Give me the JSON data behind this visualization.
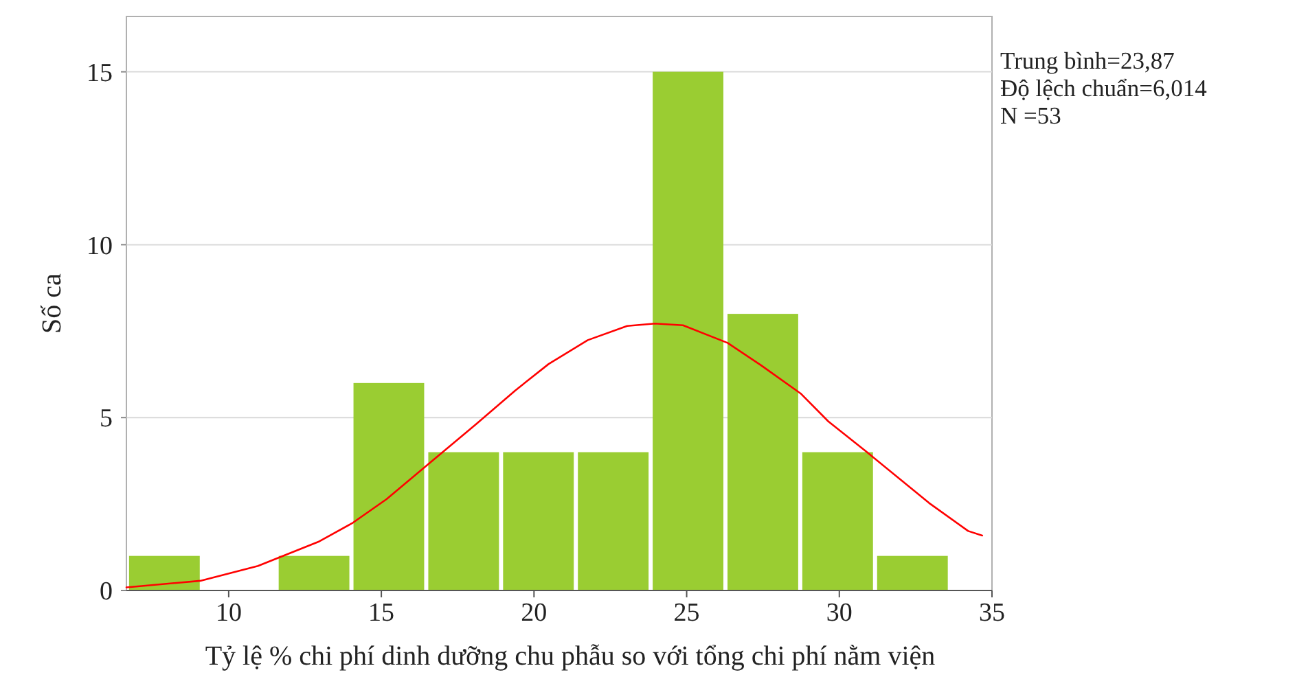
{
  "chart_data": {
    "type": "histogram",
    "xlabel": "Tỷ lệ % chi phí dinh dưỡng chu phẫu so với tổng chi phí nằm viện",
    "ylabel": "Số ca",
    "bins": [
      6.67,
      9.12,
      11.57,
      14.02,
      16.47,
      18.92,
      21.37,
      23.82,
      26.27,
      28.72,
      31.17,
      33.62
    ],
    "values": [
      1,
      0,
      1,
      6,
      4,
      4,
      4,
      15,
      8,
      4,
      1
    ],
    "color": "#9acd32",
    "series": [
      {
        "type": "line",
        "color": "#ff0000",
        "x": [
          6.65,
          9.07,
          10.96,
          12.97,
          14.07,
          15.17,
          16.45,
          18.09,
          19.38,
          20.48,
          21.76,
          23.05,
          23.96,
          24.88,
          26.34,
          27.44,
          28.73,
          29.64,
          30.92,
          32.94,
          34.22,
          34.68
        ],
        "values": [
          0.09,
          0.28,
          0.71,
          1.42,
          1.96,
          2.64,
          3.59,
          4.8,
          5.78,
          6.55,
          7.24,
          7.65,
          7.72,
          7.67,
          7.16,
          6.51,
          5.7,
          4.89,
          3.99,
          2.53,
          1.72,
          1.59
        ]
      }
    ],
    "xlim": [
      6.65,
      35
    ],
    "xticks": [
      10,
      15,
      20,
      25,
      30,
      35
    ],
    "ylim": [
      0,
      16.6
    ],
    "yticks": [
      0,
      5,
      10,
      15
    ],
    "grid": "y",
    "annotations": [
      "Trung bình=23,87",
      "Độ lệch chuẩn=6,014",
      "N =53"
    ]
  }
}
